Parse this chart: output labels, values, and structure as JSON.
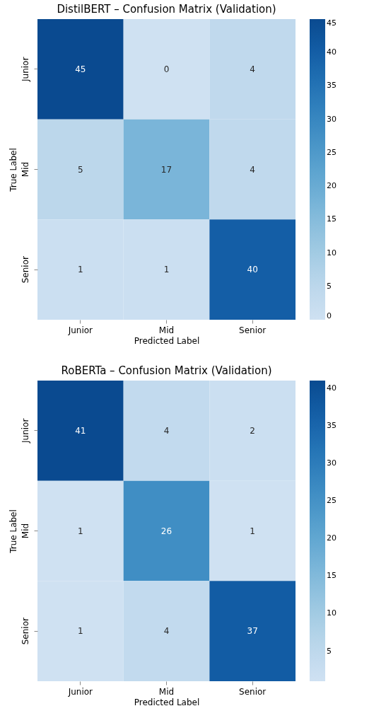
{
  "chart_data": [
    {
      "type": "heatmap",
      "title": "DistilBERT – Confusion Matrix (Validation)",
      "xlabel": "Predicted Label",
      "ylabel": "True Label",
      "categories": [
        "Junior",
        "Mid",
        "Senior"
      ],
      "y_categories": [
        "Junior",
        "Mid",
        "Senior"
      ],
      "cells": [
        [
          45,
          0,
          4
        ],
        [
          5,
          17,
          4
        ],
        [
          1,
          1,
          40
        ]
      ],
      "clim": [
        0,
        45
      ],
      "cticks": [
        0,
        5,
        10,
        15,
        20,
        25,
        30,
        35,
        40,
        45
      ],
      "data_labels": true
    },
    {
      "type": "heatmap",
      "title": "RoBERTa – Confusion Matrix (Validation)",
      "xlabel": "Predicted Label",
      "ylabel": "True Label",
      "categories": [
        "Junior",
        "Mid",
        "Senior"
      ],
      "y_categories": [
        "Junior",
        "Mid",
        "Senior"
      ],
      "cells": [
        [
          41,
          4,
          2
        ],
        [
          1,
          26,
          1
        ],
        [
          1,
          4,
          37
        ]
      ],
      "clim": [
        1,
        41
      ],
      "cticks": [
        5,
        10,
        15,
        20,
        25,
        30,
        35,
        40
      ],
      "data_labels": true
    }
  ]
}
